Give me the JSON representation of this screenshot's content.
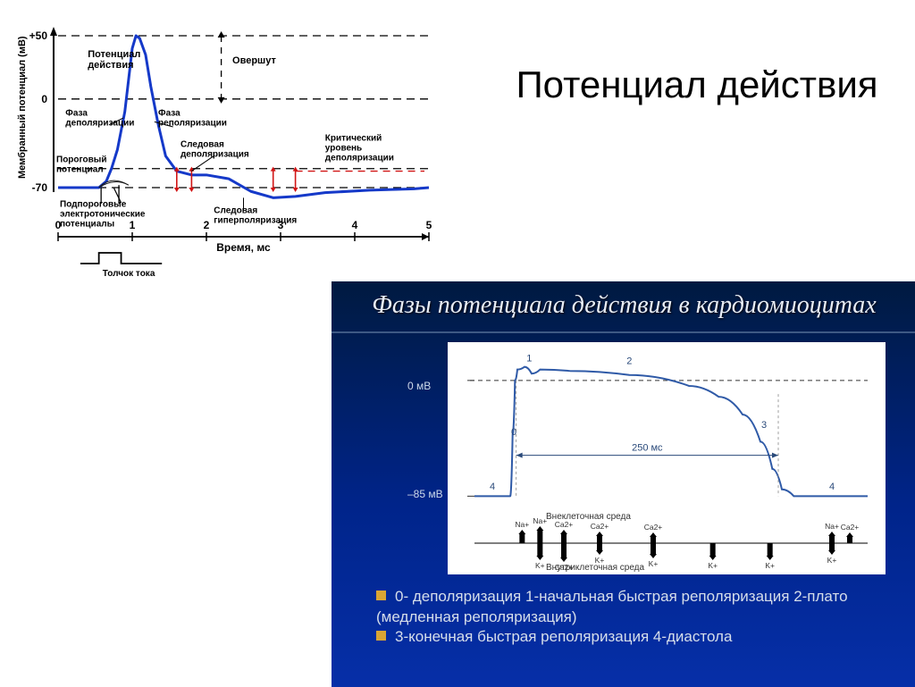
{
  "title_main": "Потенциал действия",
  "chart_left": {
    "type": "line",
    "y_axis_label": "Мембранный потенциал (мВ)",
    "y_ticks": [
      "+50",
      "0",
      "-70"
    ],
    "x_axis_label": "Время, мс",
    "x_ticks": [
      "0",
      "1",
      "2",
      "3",
      "4",
      "5"
    ],
    "curve_main_color": "#1539c9",
    "curve_main_width": 3,
    "curve_main_points": [
      [
        0,
        -70
      ],
      [
        0.55,
        -70
      ],
      [
        0.65,
        -65
      ],
      [
        0.72,
        -55
      ],
      [
        0.8,
        -40
      ],
      [
        0.9,
        -10
      ],
      [
        0.95,
        15
      ],
      [
        1.0,
        40
      ],
      [
        1.05,
        50
      ],
      [
        1.1,
        48
      ],
      [
        1.18,
        35
      ],
      [
        1.25,
        10
      ],
      [
        1.35,
        -20
      ],
      [
        1.45,
        -45
      ],
      [
        1.6,
        -57
      ],
      [
        1.8,
        -60
      ],
      [
        2.0,
        -60
      ],
      [
        2.3,
        -63
      ],
      [
        2.6,
        -73
      ],
      [
        2.9,
        -78
      ],
      [
        3.2,
        -77
      ],
      [
        3.6,
        -74
      ],
      [
        4.2,
        -72
      ],
      [
        4.8,
        -71
      ],
      [
        5.0,
        -70
      ]
    ],
    "dashed_lines": [
      {
        "y": 50,
        "label": ""
      },
      {
        "y": 0,
        "label": ""
      },
      {
        "y": -55,
        "label": ""
      },
      {
        "y": -70,
        "label": ""
      }
    ],
    "annotations": {
      "ap_label": "Потенциал\nдействия",
      "overshoot": "Овершут",
      "depol_phase": "Фаза\nдеполяризации",
      "repol_phase": "Фаза\nреполяризации",
      "trace_depol": "Следовая\nдеполяризация",
      "critical": "Критический\nуровень\nдеполяризации",
      "threshold": "Пороговый\nпотенциал",
      "subthreshold": "Подпороговые\nэлектротонические\nпотенциалы",
      "trace_hyper": "Следовая\nгиперполяризация",
      "stimulus": "Толчок тока"
    },
    "colors": {
      "dashed": "#000000",
      "red_markers": "#d11515",
      "text": "#000000",
      "bg": "#ffffff"
    },
    "font": {
      "annotations": 10,
      "weight": "bold"
    }
  },
  "slide": {
    "title": "Фазы потенциала действия в кардиомиоцитах",
    "bg_gradient": [
      "#001a40",
      "#00248a",
      "#062fa8"
    ],
    "chart_bg": "#ffffff",
    "curve_color": "#2f5aa7",
    "curve_width": 2,
    "y_labels": {
      "top": "0 мВ",
      "bottom": "–85 мВ"
    },
    "phase_numbers": [
      "0",
      "1",
      "2",
      "3",
      "4",
      "4"
    ],
    "duration_label": "250 мс",
    "extracellular": "Внеклеточная среда",
    "intracellular": "Внутриклеточная среда",
    "ions_top": [
      "Na+",
      "Na+",
      "Ca2+",
      "Ca2+",
      "Ca2+",
      "Na+",
      "Ca2+"
    ],
    "ions_bottom": [
      "K+",
      "Ca2+",
      "K+",
      "K+",
      "K+",
      "K+",
      "K+"
    ],
    "curve_points": [
      [
        0,
        -85
      ],
      [
        30,
        -85
      ],
      [
        32,
        -40
      ],
      [
        34,
        0
      ],
      [
        36,
        8
      ],
      [
        42,
        10
      ],
      [
        48,
        5
      ],
      [
        55,
        8
      ],
      [
        80,
        7
      ],
      [
        130,
        4
      ],
      [
        180,
        -4
      ],
      [
        205,
        -12
      ],
      [
        225,
        -25
      ],
      [
        240,
        -45
      ],
      [
        250,
        -65
      ],
      [
        258,
        -80
      ],
      [
        268,
        -85
      ],
      [
        330,
        -85
      ]
    ],
    "legend_lines": [
      "0- деполяризация 1-начальная быстрая реполяризация 2-плато (медленная реполяризация)",
      "3-конечная быстрая реполяризация 4-диастола"
    ],
    "bullet_color": "#d8a534",
    "legend_text_color": "#d6deea",
    "legend_font_size": 17
  }
}
